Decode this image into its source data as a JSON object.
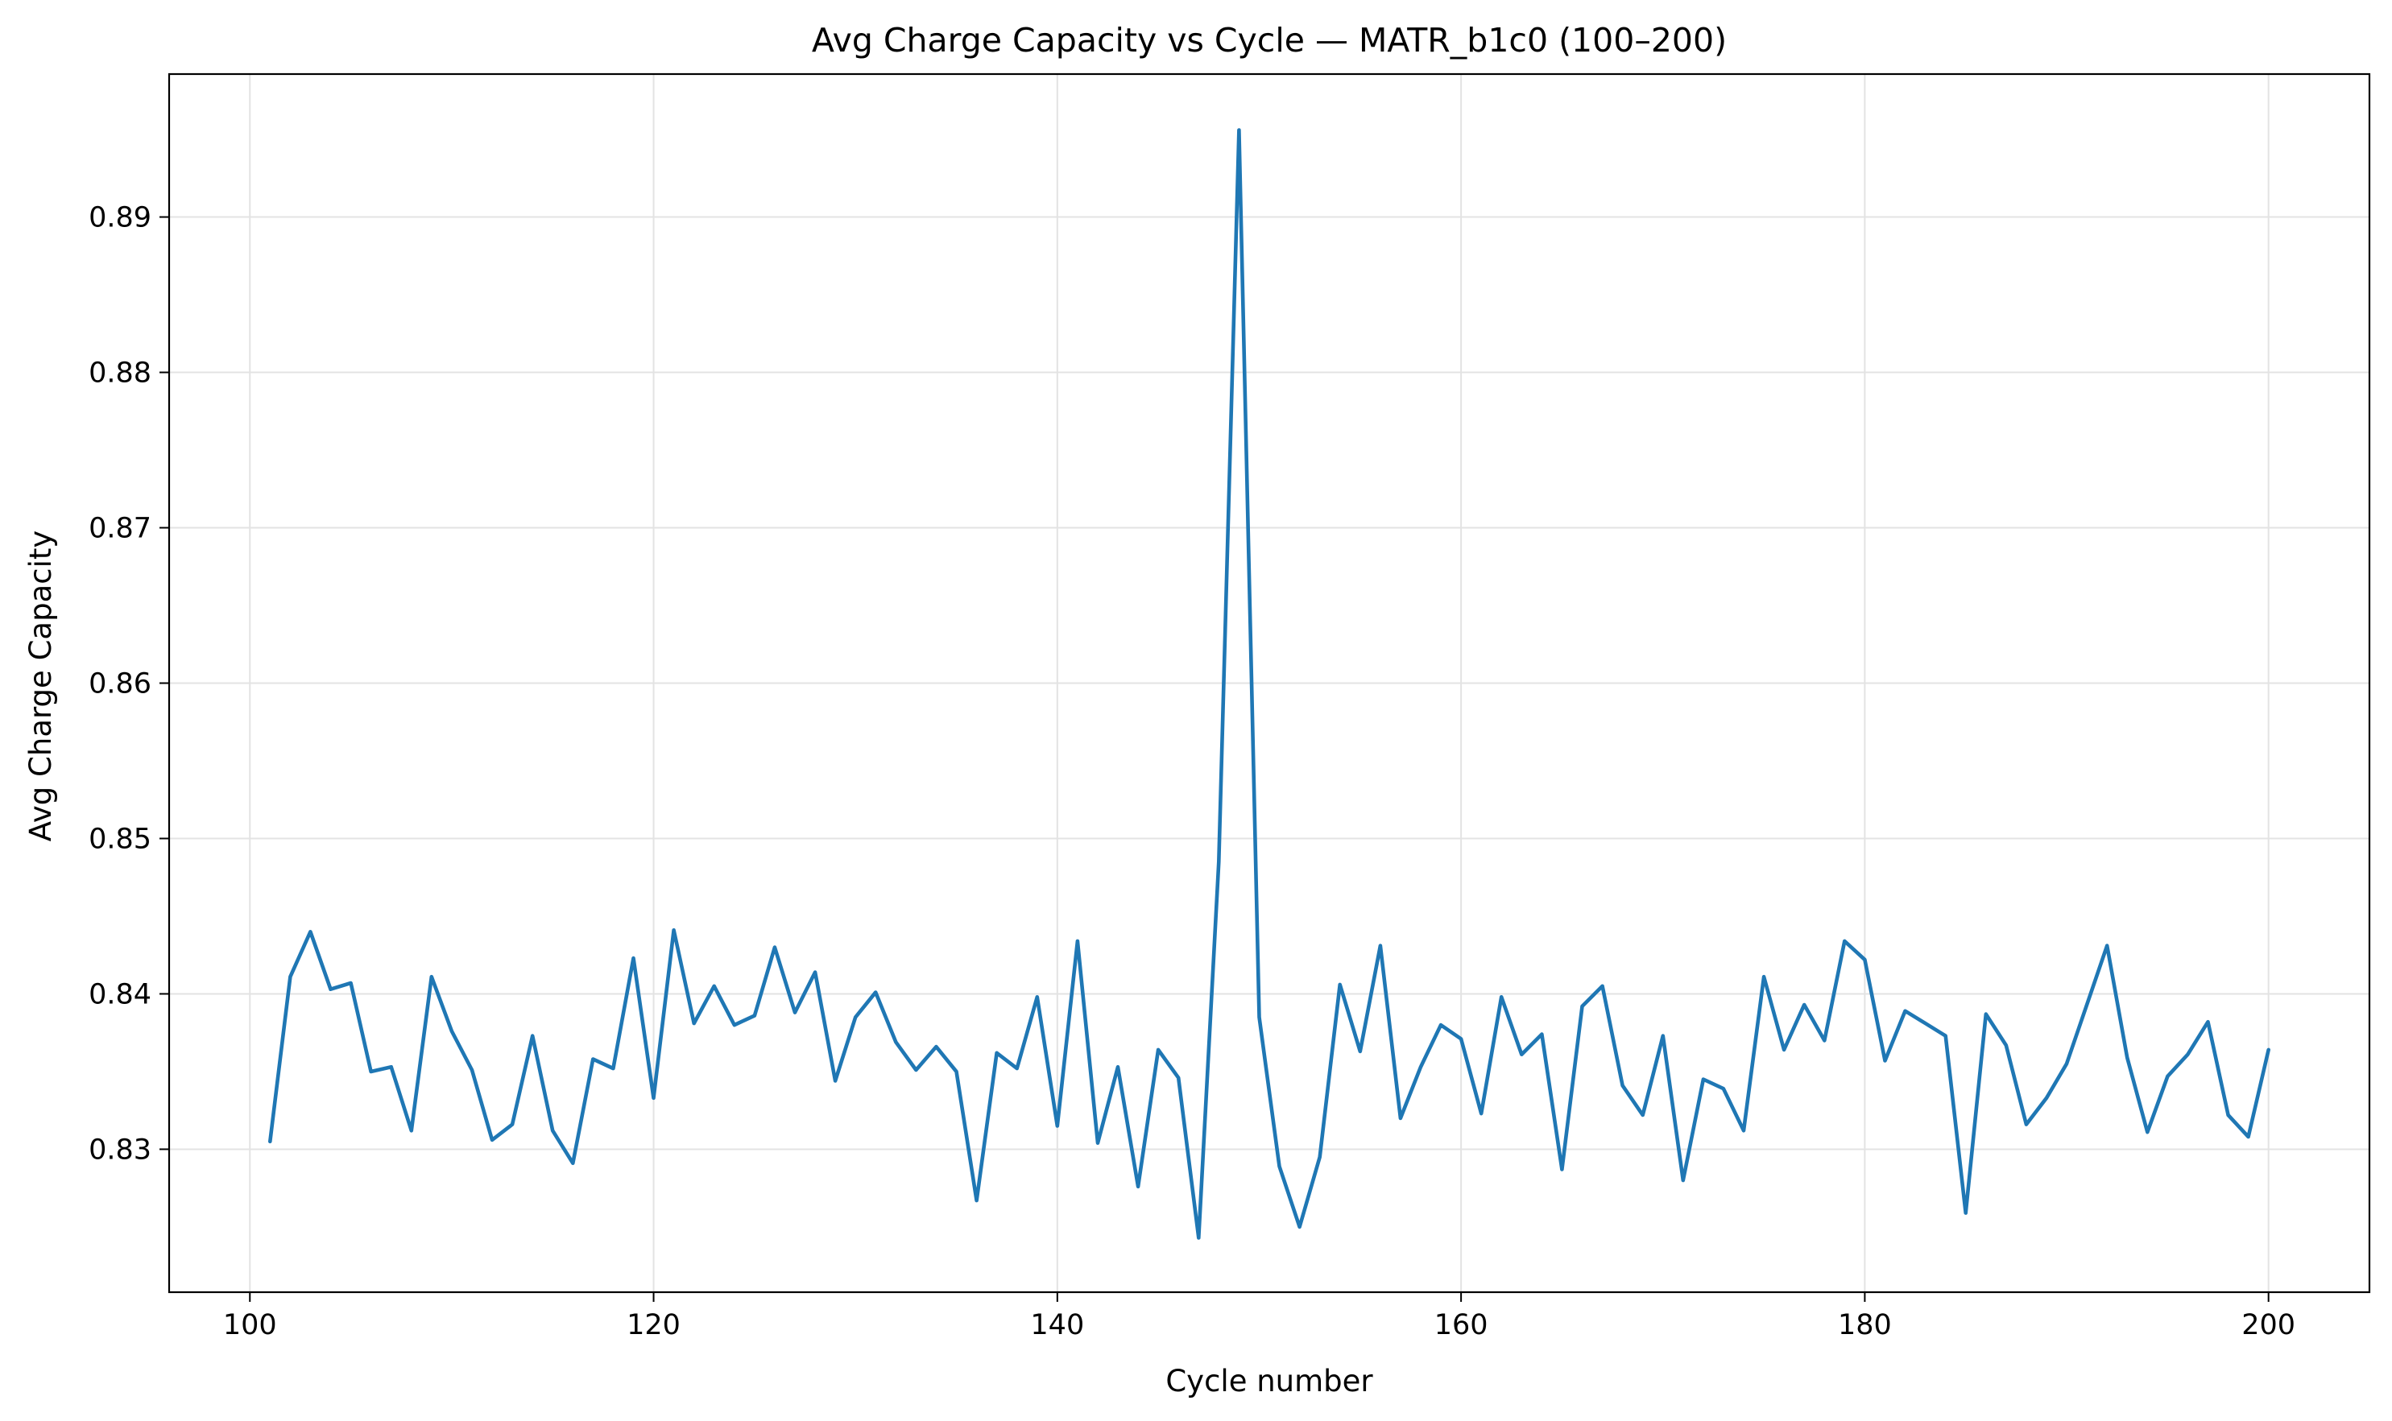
{
  "chart_data": {
    "type": "line",
    "title": "Avg Charge Capacity vs Cycle — MATR_b1c0 (100–200)",
    "xlabel": "Cycle number",
    "ylabel": "Avg Charge Capacity",
    "xlim": [
      96,
      205
    ],
    "ylim": [
      0.8208,
      0.8992
    ],
    "grid": true,
    "x_ticks": [
      100,
      120,
      140,
      160,
      180,
      200
    ],
    "y_ticks": [
      0.83,
      0.84,
      0.85,
      0.86,
      0.87,
      0.88,
      0.89
    ],
    "x_tick_labels": [
      "100",
      "120",
      "140",
      "160",
      "180",
      "200"
    ],
    "y_tick_labels": [
      "0.83",
      "0.84",
      "0.85",
      "0.86",
      "0.87",
      "0.88",
      "0.89"
    ],
    "colors": {
      "series": "#1f77b4"
    },
    "series": [
      {
        "name": "MATR_b1c0",
        "x": [
          101,
          102,
          103,
          104,
          105,
          106,
          107,
          108,
          109,
          110,
          111,
          112,
          113,
          114,
          115,
          116,
          117,
          118,
          119,
          120,
          121,
          122,
          123,
          124,
          125,
          126,
          127,
          128,
          129,
          130,
          131,
          132,
          133,
          134,
          135,
          136,
          137,
          138,
          139,
          140,
          141,
          142,
          143,
          144,
          145,
          146,
          147,
          148,
          149,
          150,
          151,
          152,
          153,
          154,
          155,
          156,
          157,
          158,
          159,
          160,
          161,
          162,
          163,
          164,
          165,
          166,
          167,
          168,
          169,
          170,
          171,
          172,
          173,
          174,
          175,
          176,
          177,
          178,
          179,
          180,
          181,
          182,
          183,
          184,
          185,
          186,
          187,
          188,
          189,
          190,
          191,
          192,
          193,
          194,
          195,
          196,
          197,
          198,
          199,
          200
        ],
        "values": [
          0.8305,
          0.8411,
          0.844,
          0.8403,
          0.8407,
          0.835,
          0.8353,
          0.8312,
          0.8411,
          0.8376,
          0.8351,
          0.8306,
          0.8316,
          0.8373,
          0.8312,
          0.8291,
          0.8358,
          0.8352,
          0.8423,
          0.8333,
          0.8441,
          0.8381,
          0.8405,
          0.838,
          0.8386,
          0.843,
          0.8388,
          0.8414,
          0.8344,
          0.8385,
          0.8401,
          0.8369,
          0.8351,
          0.8366,
          0.835,
          0.8267,
          0.8362,
          0.8352,
          0.8398,
          0.8315,
          0.8434,
          0.8304,
          0.8353,
          0.8276,
          0.8364,
          0.8346,
          0.8243,
          0.8485,
          0.8956,
          0.8385,
          0.8289,
          0.825,
          0.8295,
          0.8406,
          0.8363,
          0.8431,
          0.832,
          0.8353,
          0.838,
          0.8371,
          0.8323,
          0.8398,
          0.8361,
          0.8374,
          0.8287,
          0.8392,
          0.8405,
          0.8341,
          0.8322,
          0.8373,
          0.828,
          0.8345,
          0.8339,
          0.8312,
          0.8411,
          0.8364,
          0.8393,
          0.837,
          0.8434,
          0.8422,
          0.8357,
          0.8389,
          0.8381,
          0.8373,
          0.8259,
          0.8387,
          0.8367,
          0.8316,
          0.8333,
          0.8355,
          0.8393,
          0.8431,
          0.8359,
          0.8311,
          0.8347,
          0.8361,
          0.8382,
          0.8322,
          0.8308,
          0.8364
        ]
      }
    ]
  }
}
